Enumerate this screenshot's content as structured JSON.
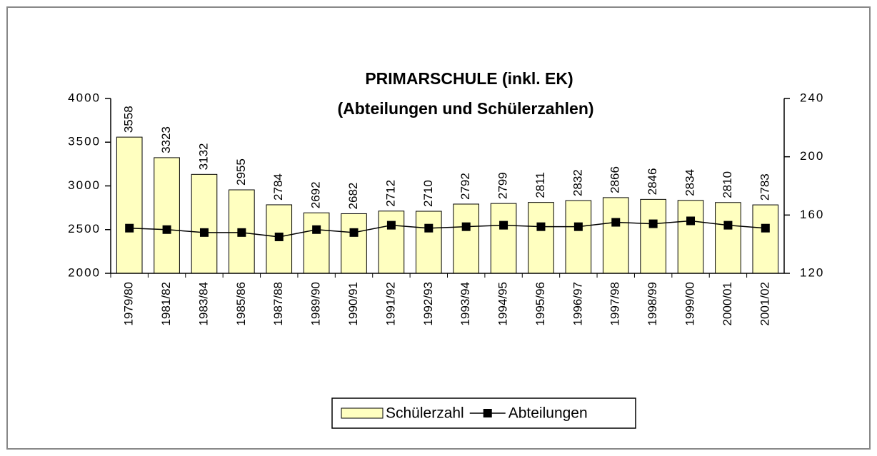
{
  "chart_data": {
    "type": "bar_line",
    "title": "PRIMARSCHULE (inkl. EK)",
    "subtitle": "(Abteilungen und Schülerzahlen)",
    "categories": [
      "1979/80",
      "1981/82",
      "1983/84",
      "1985/86",
      "1987/88",
      "1989/90",
      "1990/91",
      "1991/92",
      "1992/93",
      "1993/94",
      "1994/95",
      "1995/96",
      "1996/97",
      "1997/98",
      "1998/99",
      "1999/00",
      "2000/01",
      "2001/02"
    ],
    "series": [
      {
        "name": "Schülerzahl",
        "color": "#ffffc0",
        "kind": "bar",
        "axis": "y",
        "values": [
          3558,
          3323,
          3132,
          2955,
          2784,
          2692,
          2682,
          2712,
          2710,
          2792,
          2799,
          2811,
          2832,
          2866,
          2846,
          2834,
          2810,
          2783
        ]
      },
      {
        "name": "Abteilungen",
        "color": "#000000",
        "kind": "line",
        "axis": "y2",
        "values": [
          151,
          150,
          148,
          148,
          145,
          150,
          148,
          153,
          151,
          152,
          153,
          152,
          152,
          155,
          154,
          156,
          153,
          151
        ]
      }
    ],
    "ylim": [
      2000,
      4000
    ],
    "yticks": [
      2000,
      2500,
      3000,
      3500,
      4000
    ],
    "y2lim": [
      120,
      240
    ],
    "y2ticks": [
      120,
      160,
      200,
      240
    ],
    "grid": false,
    "legend": "bottom"
  }
}
